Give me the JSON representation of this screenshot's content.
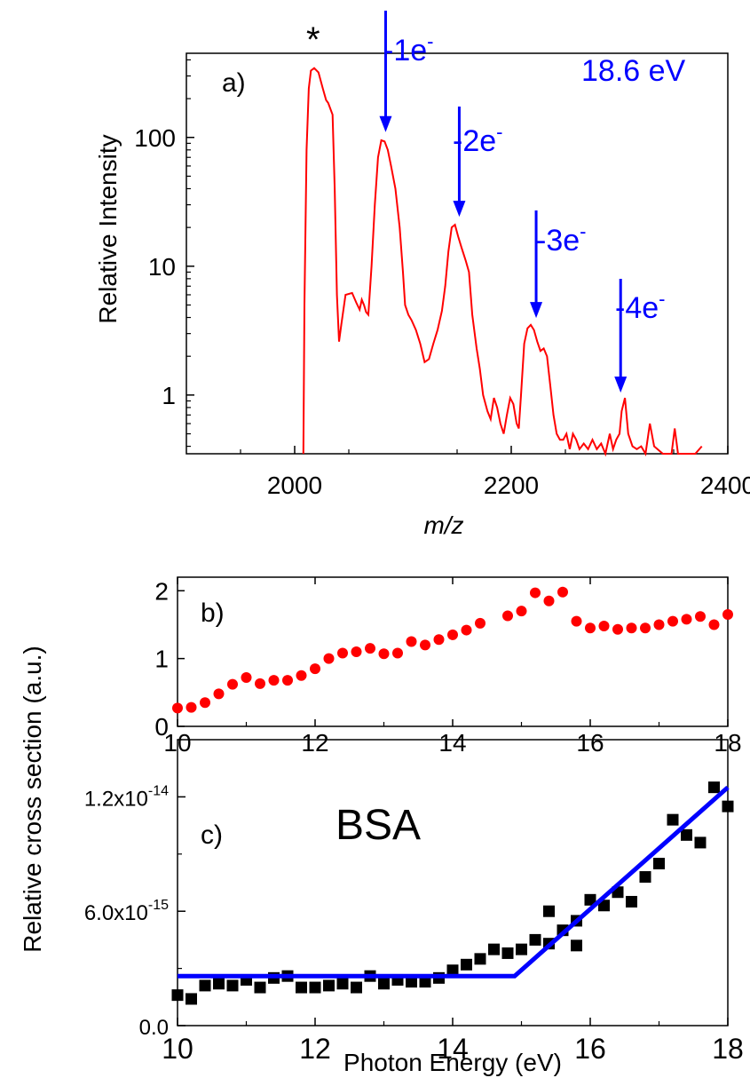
{
  "figure": {
    "colors": {
      "spectrum": "#ff0000",
      "annotation": "#0000ff",
      "points_b": "#ff0000",
      "points_c": "#000000",
      "fit": "#0000ff",
      "axes": "#000000"
    }
  },
  "chart_data": [
    {
      "id": "a",
      "type": "line",
      "panel_label": "a)",
      "xlabel": "m/z",
      "ylabel": "Relative Intensity",
      "xlim": [
        1900,
        2400
      ],
      "ylim": [
        0.35,
        450
      ],
      "yscale": "log",
      "grid": false,
      "x_ticks": [
        2000,
        2200,
        2400
      ],
      "x_tick_labels": [
        "2000",
        "2200",
        "2400"
      ],
      "y_ticks": [
        1,
        10,
        100
      ],
      "y_tick_labels": [
        "1",
        "10",
        "100"
      ],
      "annotations": {
        "energy": "18.6 eV",
        "star": "*",
        "peaks": [
          {
            "label": "-1e",
            "sup": "-",
            "x": 2084,
            "y": 100
          },
          {
            "label": "-2e",
            "sup": "-",
            "x": 2152,
            "y": 22
          },
          {
            "label": "-3e",
            "sup": "-",
            "x": 2223,
            "y": 3.6
          },
          {
            "label": "-4e",
            "sup": "-",
            "x": 2301,
            "y": 0.95
          }
        ]
      },
      "series": [
        {
          "x": [
            2008,
            2009,
            2011,
            2013,
            2015,
            2018,
            2022,
            2026,
            2029,
            2031,
            2035,
            2037,
            2039,
            2041,
            2043,
            2047,
            2053,
            2057,
            2060,
            2062,
            2064,
            2066,
            2068,
            2071,
            2074,
            2077,
            2080,
            2083,
            2086,
            2089,
            2093,
            2097,
            2100,
            2102,
            2105,
            2108,
            2112,
            2116,
            2120,
            2124,
            2128,
            2132,
            2136,
            2139,
            2142,
            2145,
            2148,
            2151,
            2154,
            2158,
            2161,
            2164,
            2168,
            2171,
            2174,
            2178,
            2181,
            2184,
            2187,
            2190,
            2193,
            2196,
            2199,
            2202,
            2205,
            2207,
            2209,
            2212,
            2215,
            2218,
            2221,
            2224,
            2227,
            2230,
            2233,
            2236,
            2239,
            2242,
            2245,
            2248,
            2251,
            2254,
            2257,
            2260,
            2263,
            2267,
            2271,
            2275,
            2279,
            2283,
            2287,
            2291,
            2294,
            2297,
            2300,
            2302,
            2305,
            2308,
            2312,
            2316,
            2320,
            2324,
            2328,
            2332,
            2340,
            2348,
            2351,
            2354,
            2362,
            2370,
            2376
          ],
          "y": [
            0.35,
            5,
            80,
            240,
            330,
            345,
            320,
            240,
            195,
            185,
            150,
            40,
            6,
            2.6,
            3.5,
            6,
            6.2,
            5.2,
            4.6,
            5.5,
            5,
            4.4,
            4.2,
            10,
            30,
            70,
            95,
            93,
            80,
            60,
            40,
            20,
            9,
            5,
            4.2,
            3.8,
            3.2,
            2.5,
            1.8,
            1.9,
            2.5,
            3.2,
            4.5,
            7,
            13,
            20,
            21,
            17,
            14,
            11,
            9,
            4.2,
            2.3,
            1.6,
            1.0,
            0.75,
            0.65,
            0.95,
            0.8,
            0.6,
            0.5,
            0.7,
            0.95,
            0.85,
            0.6,
            0.55,
            1.0,
            2.5,
            3.3,
            3.5,
            3.2,
            2.6,
            2.2,
            2.3,
            2.0,
            1.2,
            0.7,
            0.5,
            0.45,
            0.45,
            0.5,
            0.38,
            0.5,
            0.45,
            0.38,
            0.42,
            0.38,
            0.45,
            0.38,
            0.42,
            0.35,
            0.5,
            0.38,
            0.45,
            0.5,
            0.75,
            0.95,
            0.5,
            0.4,
            0.38,
            0.4,
            0.35,
            0.6,
            0.4,
            0.35,
            0.35,
            0.55,
            0.35,
            0.35,
            0.35,
            0.4
          ]
        }
      ]
    },
    {
      "id": "b",
      "type": "scatter",
      "panel_label": "b)",
      "xlim": [
        10,
        18
      ],
      "ylim": [
        0,
        2.2
      ],
      "grid": false,
      "x_ticks": [
        10,
        12,
        14,
        16,
        18
      ],
      "x_tick_labels": [
        "10",
        "12",
        "14",
        "16",
        "18"
      ],
      "y_ticks": [
        0,
        1,
        2
      ],
      "y_tick_labels": [
        "0",
        "1",
        "2"
      ],
      "series": [
        {
          "marker": "circle",
          "x": [
            10.0,
            10.2,
            10.4,
            10.6,
            10.8,
            11.0,
            11.2,
            11.4,
            11.6,
            11.8,
            12.0,
            12.2,
            12.4,
            12.6,
            12.8,
            13.0,
            13.2,
            13.4,
            13.6,
            13.8,
            14.0,
            14.2,
            14.4,
            14.8,
            15.0,
            15.2,
            15.4,
            15.6,
            15.8,
            16.0,
            16.2,
            16.4,
            16.6,
            16.8,
            17.0,
            17.2,
            17.4,
            17.6,
            17.8,
            18.0
          ],
          "y": [
            0.27,
            0.28,
            0.35,
            0.48,
            0.62,
            0.72,
            0.63,
            0.68,
            0.68,
            0.75,
            0.85,
            1.0,
            1.08,
            1.1,
            1.15,
            1.07,
            1.08,
            1.25,
            1.2,
            1.28,
            1.35,
            1.42,
            1.52,
            1.63,
            1.7,
            1.97,
            1.85,
            1.98,
            1.55,
            1.45,
            1.48,
            1.43,
            1.45,
            1.45,
            1.5,
            1.55,
            1.58,
            1.62,
            1.5,
            1.65
          ]
        }
      ]
    },
    {
      "id": "c",
      "type": "scatter",
      "panel_label": "c)",
      "title": "BSA",
      "xlabel": "Photon Energy (eV)",
      "xlim": [
        10,
        18
      ],
      "ylim": [
        0,
        1.5e-14
      ],
      "grid": false,
      "x_ticks": [
        10,
        12,
        14,
        16,
        18
      ],
      "x_tick_labels": [
        "10",
        "12",
        "14",
        "16",
        "18"
      ],
      "y_ticks": [
        0,
        6e-15,
        1.2e-14
      ],
      "y_tick_labels": [
        {
          "mantissa": "0.0",
          "exp": ""
        },
        {
          "mantissa": "6.0x10",
          "exp": "-15"
        },
        {
          "mantissa": "1.2x10",
          "exp": "-14"
        }
      ],
      "series": [
        {
          "marker": "square",
          "x": [
            10.0,
            10.2,
            10.4,
            10.6,
            10.8,
            11.0,
            11.2,
            11.4,
            11.6,
            11.8,
            12.0,
            12.2,
            12.4,
            12.6,
            12.8,
            13.0,
            13.2,
            13.4,
            13.6,
            13.8,
            14.0,
            14.2,
            14.4,
            14.6,
            14.8,
            15.0,
            15.2,
            15.4,
            15.4,
            15.6,
            15.8,
            15.8,
            16.0,
            16.2,
            16.4,
            16.6,
            16.8,
            17.0,
            17.2,
            17.4,
            17.6,
            17.8,
            18.0
          ],
          "y": [
            1.6e-15,
            1.4e-15,
            2.1e-15,
            2.2e-15,
            2.1e-15,
            2.4e-15,
            2e-15,
            2.5e-15,
            2.6e-15,
            2e-15,
            2e-15,
            2.1e-15,
            2.2e-15,
            2e-15,
            2.6e-15,
            2.2e-15,
            2.4e-15,
            2.3e-15,
            2.3e-15,
            2.5e-15,
            2.9e-15,
            3.2e-15,
            3.5e-15,
            4e-15,
            3.8e-15,
            4e-15,
            4.5e-15,
            4.3e-15,
            6e-15,
            5e-15,
            4.2e-15,
            5.5e-15,
            6.6e-15,
            6.3e-15,
            7e-15,
            6.5e-15,
            7.8e-15,
            8.5e-15,
            1.08e-14,
            1e-14,
            9.6e-15,
            1.25e-14,
            1.15e-14
          ]
        },
        {
          "type": "line",
          "x": [
            10.0,
            14.9,
            18.0
          ],
          "y": [
            2.6e-15,
            2.6e-15,
            1.25e-14
          ]
        }
      ]
    }
  ],
  "shared": {
    "ylabel_bc": "Relative cross section (a.u.)"
  }
}
